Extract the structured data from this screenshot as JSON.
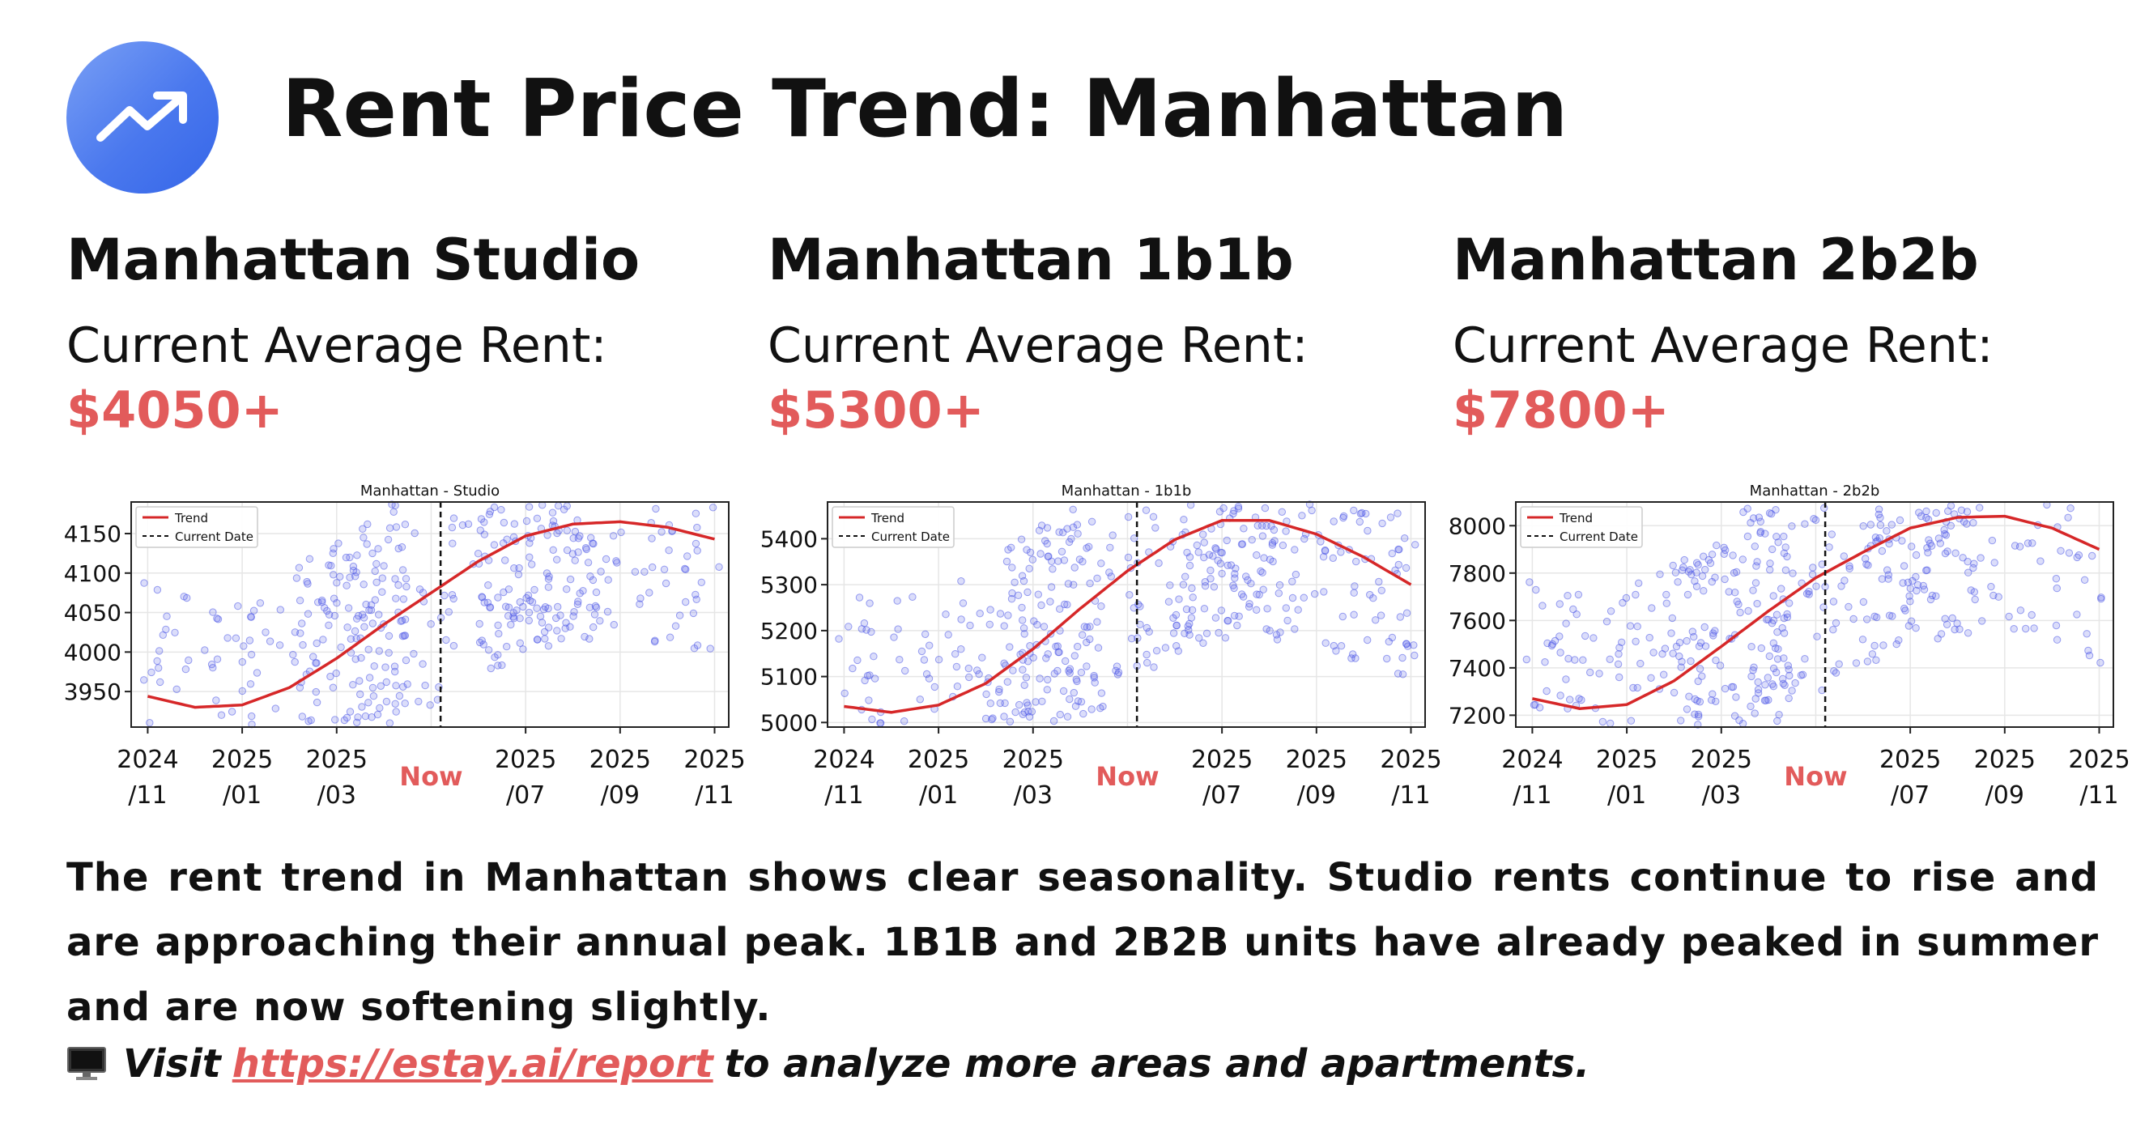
{
  "header": {
    "title": "Rent Price Trend:  Manhattan",
    "icon": "trending-up-icon",
    "accent": "#4a78ee"
  },
  "colors": {
    "highlight": "#e25b5b",
    "scatter": "#4b55e6",
    "trend": "#d62728"
  },
  "columns": [
    {
      "heading": "Manhattan Studio",
      "rent_label": "Current Average Rent:",
      "rent_value": "$4050+"
    },
    {
      "heading": "Manhattan 1b1b",
      "rent_label": "Current Average Rent:",
      "rent_value": "$5300+"
    },
    {
      "heading": "Manhattan 2b2b",
      "rent_label": "Current Average Rent:",
      "rent_value": "$7800+"
    }
  ],
  "chart_data": [
    {
      "type": "scatter",
      "title": "Manhattan - Studio",
      "legend": [
        "Trend",
        "Current Date"
      ],
      "legend_position": "top-left",
      "x_ticks": [
        "2024\n/11",
        "2025\n/01",
        "2025\n/03",
        "2025\n/07",
        "2025\n/09",
        "2025\n/11"
      ],
      "now_label": "Now",
      "xlim": [
        -0.35,
        12.3
      ],
      "now_x": 6.2,
      "ylim": [
        3905,
        4190
      ],
      "yticks": [
        3950,
        4000,
        4050,
        4100,
        4150
      ],
      "trend": {
        "x": [
          0,
          1,
          2,
          3,
          4,
          5,
          6,
          7,
          8,
          9,
          10,
          11,
          12
        ],
        "y": [
          3944,
          3930,
          3933,
          3955,
          3992,
          4035,
          4075,
          4115,
          4147,
          4162,
          4165,
          4158,
          4143
        ]
      }
    },
    {
      "type": "scatter",
      "title": "Manhattan - 1b1b",
      "legend": [
        "Trend",
        "Current Date"
      ],
      "legend_position": "top-left",
      "x_ticks": [
        "2024\n/11",
        "2025\n/01",
        "2025\n/03",
        "2025\n/07",
        "2025\n/09",
        "2025\n/11"
      ],
      "now_label": "Now",
      "xlim": [
        -0.35,
        12.3
      ],
      "now_x": 6.2,
      "ylim": [
        4990,
        5480
      ],
      "yticks": [
        5000,
        5100,
        5200,
        5300,
        5400
      ],
      "trend": {
        "x": [
          0,
          1,
          2,
          3,
          4,
          5,
          6,
          7,
          8,
          9,
          10,
          11,
          12
        ],
        "y": [
          5035,
          5022,
          5038,
          5085,
          5160,
          5248,
          5330,
          5398,
          5440,
          5440,
          5410,
          5360,
          5300
        ]
      }
    },
    {
      "type": "scatter",
      "title": "Manhattan - 2b2b",
      "legend": [
        "Trend",
        "Current Date"
      ],
      "legend_position": "top-left",
      "x_ticks": [
        "2024\n/11",
        "2025\n/01",
        "2025\n/03",
        "2025\n/07",
        "2025\n/09",
        "2025\n/11"
      ],
      "now_label": "Now",
      "xlim": [
        -0.35,
        12.3
      ],
      "now_x": 6.2,
      "ylim": [
        7150,
        8100
      ],
      "yticks": [
        7200,
        7400,
        7600,
        7800,
        8000
      ],
      "trend": {
        "x": [
          0,
          1,
          2,
          3,
          4,
          5,
          6,
          7,
          8,
          9,
          10,
          11,
          12
        ],
        "y": [
          7270,
          7228,
          7245,
          7345,
          7490,
          7640,
          7780,
          7888,
          7990,
          8035,
          8040,
          7990,
          7900
        ]
      }
    }
  ],
  "summary": "The rent trend in Manhattan shows clear seasonality. Studio rents continue to rise and are approaching their annual peak. 1B1B and 2B2B units have already peaked in summer and are now softening slightly.",
  "visit": {
    "icon": "monitor-icon",
    "prefix": "Visit",
    "link": "https://estay.ai/report",
    "suffix": "to analyze more areas and apartments."
  }
}
